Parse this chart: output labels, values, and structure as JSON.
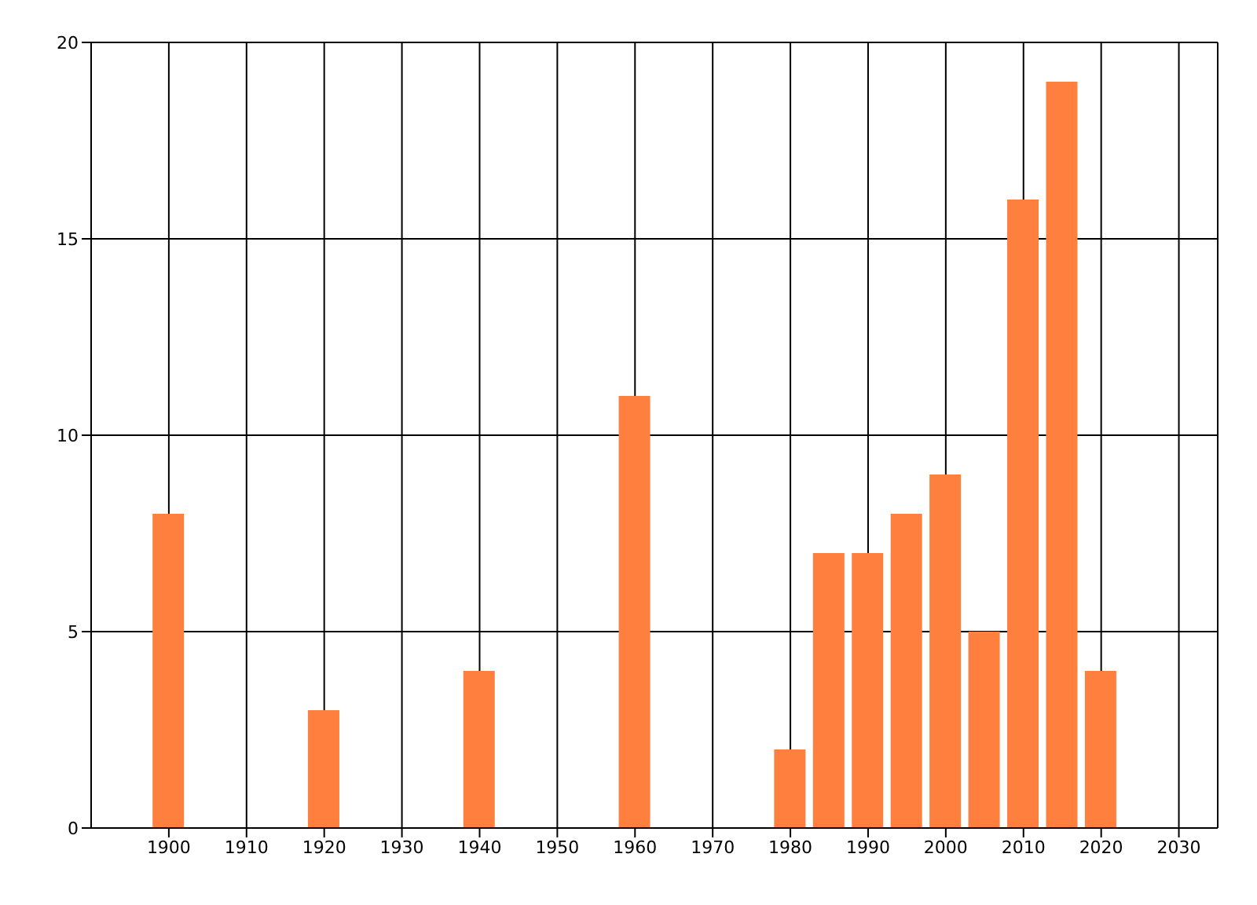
{
  "chart_data": {
    "type": "bar",
    "x": [
      1900,
      1920,
      1940,
      1960,
      1980,
      1985,
      1990,
      1995,
      2000,
      2005,
      2010,
      2015,
      2020
    ],
    "values": [
      8,
      3,
      4,
      11,
      2,
      7,
      7,
      8,
      9,
      5,
      16,
      19,
      4
    ],
    "color": "#ff7f3f",
    "xlim": [
      1890,
      2035
    ],
    "xticks": [
      1900,
      1910,
      1920,
      1930,
      1940,
      1950,
      1960,
      1970,
      1980,
      1990,
      2000,
      2010,
      2020,
      2030
    ],
    "ylim": [
      0,
      20
    ],
    "yticks": [
      0,
      5,
      10,
      15,
      20
    ],
    "grid": true
  }
}
